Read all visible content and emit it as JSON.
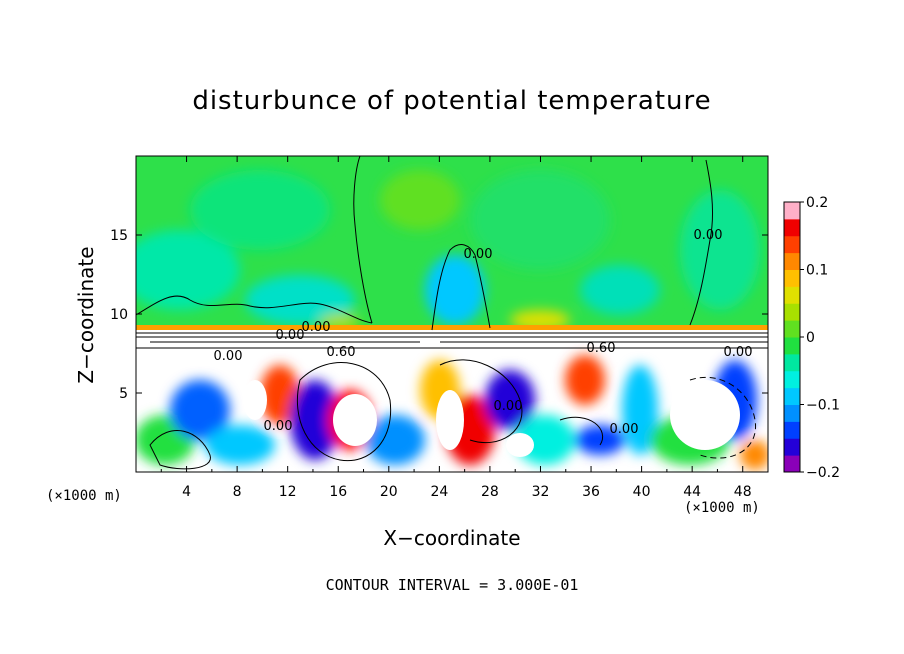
{
  "chart_data": {
    "type": "heatmap",
    "title": "disturbunce of potential temperature",
    "xlabel": "X−coordinate",
    "ylabel": "Z−coordinate",
    "x_unit_left": "(×1000 m)",
    "x_unit_right": "(×1000 m)",
    "xlim": [
      0,
      50
    ],
    "ylim": [
      0,
      20
    ],
    "x_ticks": [
      "4",
      "8",
      "12",
      "16",
      "20",
      "24",
      "28",
      "32",
      "36",
      "40",
      "44",
      "48"
    ],
    "y_ticks": [
      "5",
      "10",
      "15"
    ],
    "colorbar": {
      "range": [
        -0.2,
        0.2
      ],
      "tick_labels": [
        "0.2",
        "0.1",
        "0",
        "−0.1",
        "−0.2"
      ],
      "colors": [
        "#8a00b8",
        "#2400d8",
        "#0040ff",
        "#0090ff",
        "#00c8ff",
        "#00f0e0",
        "#00e8a0",
        "#20e040",
        "#60e020",
        "#a8e000",
        "#e0e000",
        "#ffc000",
        "#ff8800",
        "#ff4000",
        "#f00000",
        "#ffb0c8"
      ]
    },
    "contour_labels": [
      "0.00",
      "0.00",
      "0.60",
      "0.00",
      "0.00",
      "0.00",
      "0.00",
      "0.60",
      "0.00",
      "0.00",
      "0.00"
    ],
    "footer": "CONTOUR INTERVAL = 3.000E-01",
    "grid": false,
    "legend": "colorbar-right"
  }
}
